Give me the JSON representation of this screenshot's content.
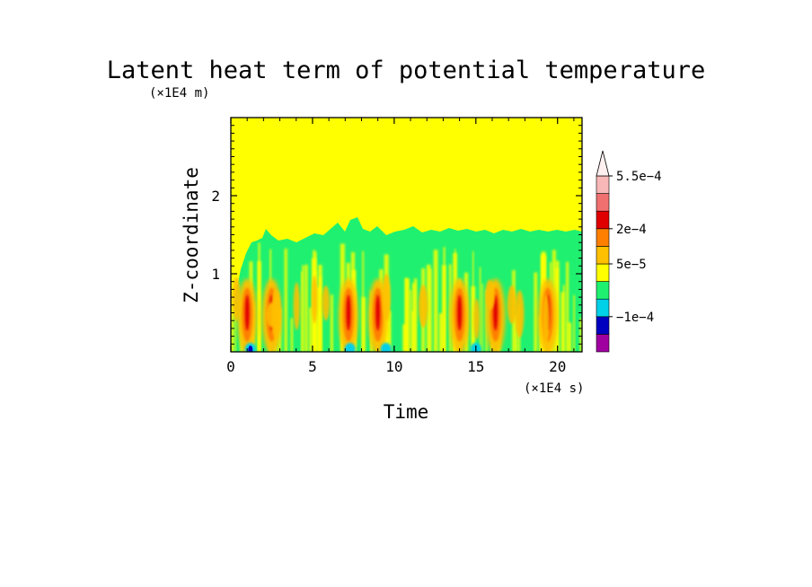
{
  "chart_data": {
    "type": "heatmap",
    "title": "Latent heat term of potential temperature",
    "xlabel": "Time",
    "ylabel": "Z-coordinate",
    "x_unit": "(×1E4 s)",
    "y_unit": "(×1E4 m)",
    "xlim": [
      0,
      21.5
    ],
    "ylim": [
      0,
      3.0
    ],
    "x_ticks": [
      0,
      5,
      10,
      15,
      20
    ],
    "x_tick_labels": [
      "0",
      "5",
      "10",
      "15",
      "20"
    ],
    "y_ticks": [
      1,
      2
    ],
    "y_tick_labels": [
      "1",
      "2"
    ],
    "colorbar": {
      "colors": [
        "#a000a0",
        "#0000c0",
        "#00d0e8",
        "#20f070",
        "#ffff00",
        "#ffc000",
        "#ff8000",
        "#e00000",
        "#f07070",
        "#f8b8b8",
        "#fff0f0"
      ],
      "tick_labels": [
        "−1e−4",
        "5e−5",
        "2e−4",
        "5.5e−4"
      ],
      "tick_boundary_index": [
        2,
        5,
        7,
        10
      ]
    },
    "field": {
      "background_value": "0 (yellow band)",
      "boundary_layer_top_km": 1.5,
      "convective_bursts_time": [
        1.0,
        2.5,
        7.2,
        9.0,
        14.0,
        16.2,
        19.4
      ],
      "burst_peak_height": 0.5,
      "negative_spots_time": [
        1.2,
        7.3,
        9.5,
        15.0
      ]
    }
  }
}
